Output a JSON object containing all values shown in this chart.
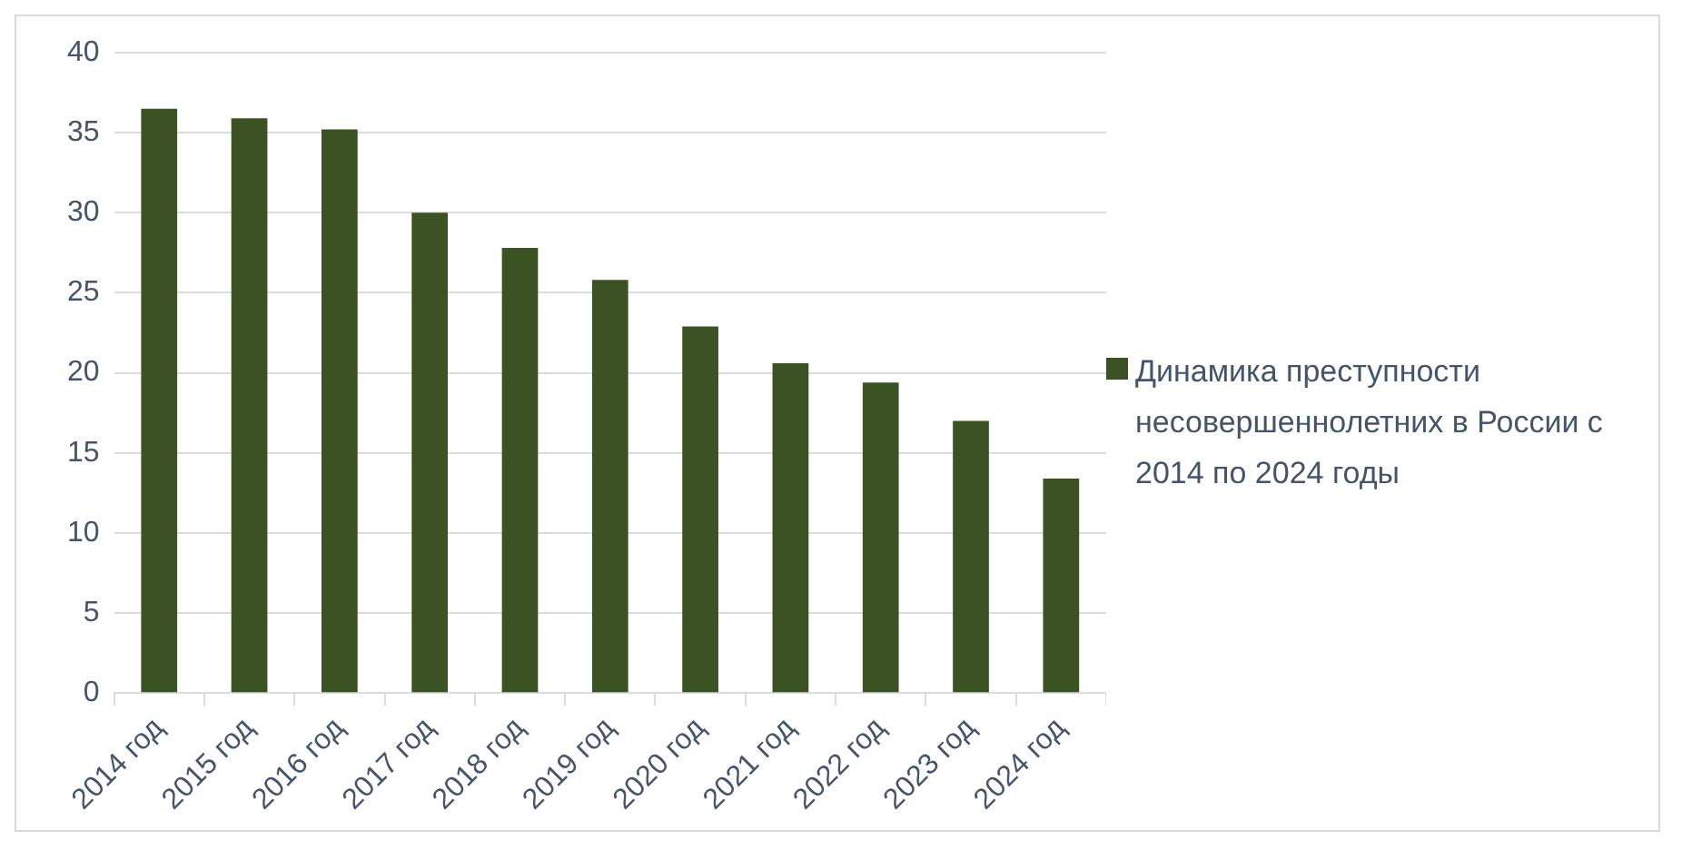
{
  "chart_data": {
    "type": "bar",
    "categories": [
      "2014 год",
      "2015 год",
      "2016 год",
      "2017 год",
      "2018 год",
      "2019 год",
      "2020 год",
      "2021 год",
      "2022 год",
      "2023 год",
      "2024 год"
    ],
    "series": [
      {
        "name": "Динамика преступности несовершеннолетних в России с 2014 по 2024 годы",
        "color": "#3b5323",
        "values": [
          36.5,
          35.9,
          35.2,
          30.0,
          27.8,
          25.8,
          22.9,
          20.6,
          19.4,
          17.0,
          13.4
        ]
      }
    ],
    "ylim": [
      0,
      40
    ],
    "yticks": [
      0,
      5,
      10,
      15,
      20,
      25,
      30,
      35,
      40
    ],
    "grid": "y",
    "legend": "right"
  }
}
